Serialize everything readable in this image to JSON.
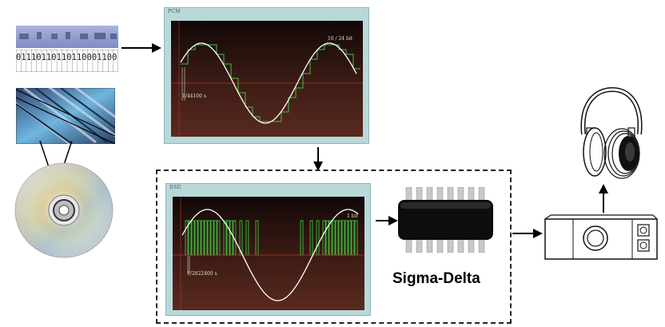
{
  "binary": {
    "bits": "01110110110110001100"
  },
  "pcm": {
    "label": "PCM",
    "bit_depth": "16 / 24 bit",
    "sample_period": "1/44100 s"
  },
  "dsd": {
    "label": "DSD",
    "bit_depth": "1 bit",
    "sample_period": "1/2822400 s"
  },
  "converter": {
    "label": "Sigma-Delta"
  },
  "colors": {
    "screen_frame": "#b9d8da",
    "scope_bg": "#1c0c0a",
    "signal": "#ffffff",
    "samples": "#3fbf3f",
    "axis": "#c0392b"
  }
}
